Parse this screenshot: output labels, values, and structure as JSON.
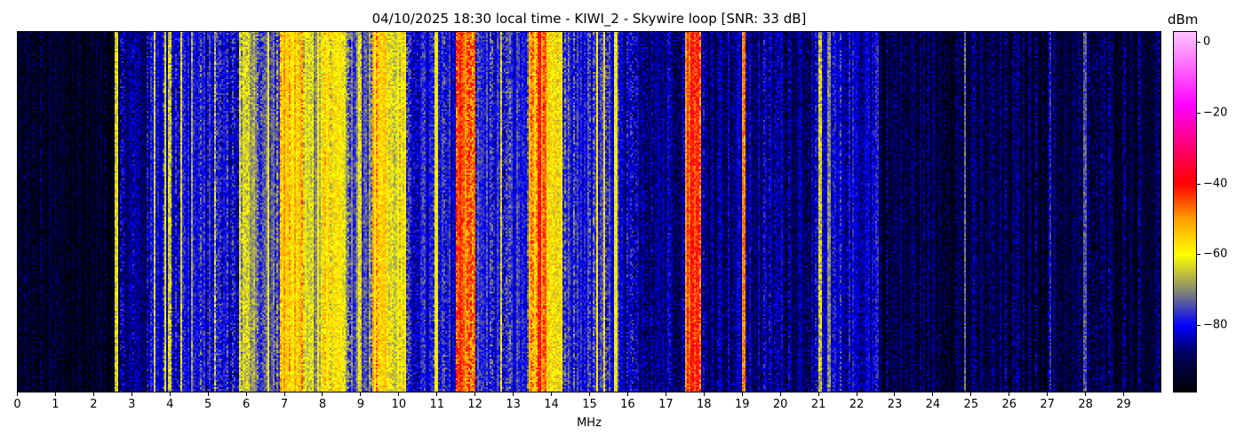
{
  "chart_data": {
    "type": "heatmap",
    "title": "04/10/2025 18:30 local time - KIWI_2 - Skywire loop [SNR: 33 dB]",
    "xlabel": "MHz",
    "ylabel": "",
    "xlim": [
      0,
      30
    ],
    "xticks": [
      0,
      1,
      2,
      3,
      4,
      5,
      6,
      7,
      8,
      9,
      10,
      11,
      12,
      13,
      14,
      15,
      16,
      17,
      18,
      19,
      20,
      21,
      22,
      23,
      24,
      25,
      26,
      27,
      28,
      29
    ],
    "colorbar": {
      "label": "dBm",
      "range": [
        -99,
        3
      ],
      "ticks": [
        0,
        -20,
        -40,
        -60,
        -80
      ],
      "colormap": [
        [
          -99,
          "#000000"
        ],
        [
          -88,
          "#000060"
        ],
        [
          -80,
          "#0000ff"
        ],
        [
          -70,
          "#8a8a70"
        ],
        [
          -60,
          "#ffff00"
        ],
        [
          -50,
          "#ffa000"
        ],
        [
          -40,
          "#ff0000"
        ],
        [
          -27,
          "#ff0090"
        ],
        [
          -18,
          "#ff00ff"
        ],
        [
          3,
          "#ffc8ff"
        ]
      ]
    },
    "band_levels_dbm": [
      [
        0,
        2.55,
        -95
      ],
      [
        2.55,
        3.5,
        -86
      ],
      [
        3.5,
        5.8,
        -80
      ],
      [
        5.8,
        6.3,
        -66
      ],
      [
        6.3,
        6.9,
        -74
      ],
      [
        6.9,
        7.5,
        -55
      ],
      [
        7.5,
        8.0,
        -66
      ],
      [
        8.0,
        8.6,
        -58
      ],
      [
        8.6,
        9.3,
        -72
      ],
      [
        9.3,
        9.7,
        -54
      ],
      [
        9.7,
        10.2,
        -62
      ],
      [
        10.2,
        11.5,
        -80
      ],
      [
        11.5,
        12.0,
        -45
      ],
      [
        12.0,
        13.4,
        -78
      ],
      [
        13.4,
        13.9,
        -50
      ],
      [
        13.9,
        14.3,
        -60
      ],
      [
        14.3,
        15.8,
        -78
      ],
      [
        15.8,
        17.5,
        -85
      ],
      [
        17.5,
        17.95,
        -47
      ],
      [
        17.95,
        21.0,
        -86
      ],
      [
        21.0,
        22.5,
        -83
      ],
      [
        22.5,
        30,
        -91
      ]
    ],
    "carriers_mhz_dbm": [
      [
        2.6,
        -62
      ],
      [
        3.6,
        -62
      ],
      [
        3.9,
        -62
      ],
      [
        4.0,
        -64
      ],
      [
        4.3,
        -63
      ],
      [
        4.6,
        -68
      ],
      [
        5.2,
        -66
      ],
      [
        6.6,
        -60
      ],
      [
        7.9,
        -58
      ],
      [
        9.0,
        -62
      ],
      [
        11.0,
        -60
      ],
      [
        12.7,
        -64
      ],
      [
        13.7,
        -40
      ],
      [
        15.2,
        -58
      ],
      [
        15.4,
        -58
      ],
      [
        15.7,
        -60
      ],
      [
        17.7,
        -40
      ],
      [
        17.85,
        -42
      ],
      [
        19.05,
        -48
      ],
      [
        21.05,
        -64
      ],
      [
        21.3,
        -70
      ],
      [
        22.55,
        -78
      ],
      [
        24.85,
        -72
      ],
      [
        27.1,
        -78
      ],
      [
        28.0,
        -74
      ]
    ]
  }
}
